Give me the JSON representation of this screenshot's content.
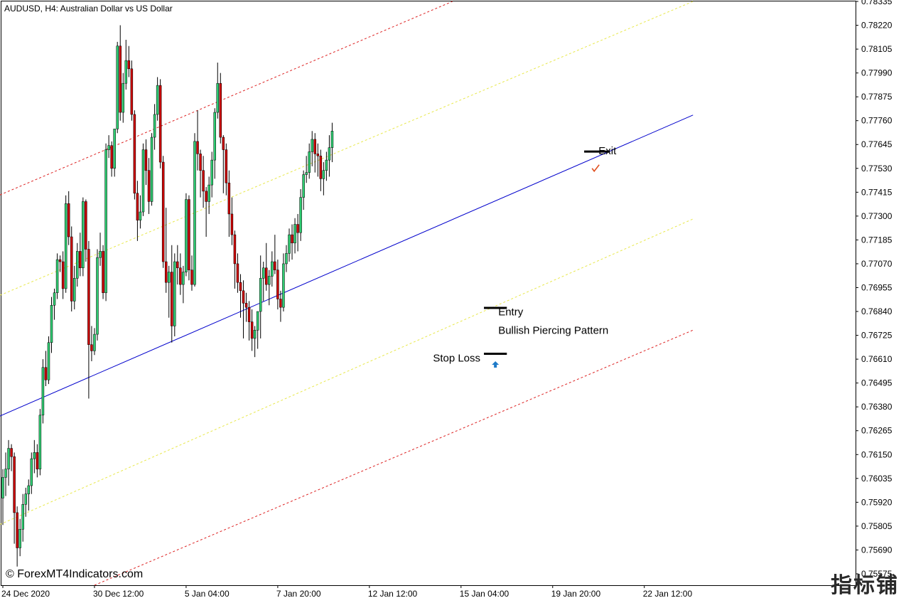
{
  "chart_data": {
    "type": "candlestick",
    "title": "AUDUSD, H4:  Australian Dollar vs US Dollar",
    "watermark": "© ForexMT4Indicators.com",
    "corner_logo": "指标铺",
    "y_ticks": [
      "0.78335",
      "0.78220",
      "0.78105",
      "0.77990",
      "0.77875",
      "0.77760",
      "0.77645",
      "0.77530",
      "0.77415",
      "0.77300",
      "0.77185",
      "0.77070",
      "0.76955",
      "0.76840",
      "0.76725",
      "0.76610",
      "0.76495",
      "0.76380",
      "0.76265",
      "0.76150",
      "0.76035",
      "0.75920",
      "0.75805",
      "0.75690",
      "0.75575"
    ],
    "ylim": [
      0.7552,
      0.78335
    ],
    "x_ticks": [
      {
        "label": "24 Dec 2020",
        "bar": 0
      },
      {
        "label": "30 Dec 12:00",
        "bar": 32
      },
      {
        "label": "5 Jan 04:00",
        "bar": 64
      },
      {
        "label": "7 Jan 20:00",
        "bar": 96
      },
      {
        "label": "12 Jan 12:00",
        "bar": 128
      },
      {
        "label": "15 Jan 04:00",
        "bar": 160
      },
      {
        "label": "19 Jan 20:00",
        "bar": 192
      },
      {
        "label": "22 Jan 12:00",
        "bar": 224
      }
    ],
    "candles_ohlc": [
      [
        0.7594,
        0.7608,
        0.7581,
        0.7604
      ],
      [
        0.7604,
        0.7616,
        0.7595,
        0.7608
      ],
      [
        0.7608,
        0.7622,
        0.76,
        0.7618
      ],
      [
        0.7618,
        0.762,
        0.7607,
        0.7614
      ],
      [
        0.7614,
        0.7616,
        0.7572,
        0.7587
      ],
      [
        0.7587,
        0.759,
        0.7561,
        0.757
      ],
      [
        0.757,
        0.7584,
        0.7566,
        0.7579
      ],
      [
        0.7579,
        0.7596,
        0.7573,
        0.7591
      ],
      [
        0.7591,
        0.7599,
        0.7585,
        0.7596
      ],
      [
        0.7596,
        0.7603,
        0.7588,
        0.76
      ],
      [
        0.76,
        0.7616,
        0.7596,
        0.7613
      ],
      [
        0.7613,
        0.7622,
        0.7606,
        0.7616
      ],
      [
        0.7616,
        0.762,
        0.7604,
        0.7608
      ],
      [
        0.7608,
        0.7637,
        0.7605,
        0.7634
      ],
      [
        0.7634,
        0.7661,
        0.763,
        0.7657
      ],
      [
        0.7657,
        0.7665,
        0.7648,
        0.7651
      ],
      [
        0.7651,
        0.7672,
        0.7649,
        0.7669
      ],
      [
        0.7669,
        0.7691,
        0.7664,
        0.7687
      ],
      [
        0.7687,
        0.7695,
        0.768,
        0.7693
      ],
      [
        0.7693,
        0.7712,
        0.769,
        0.7709
      ],
      [
        0.7709,
        0.7711,
        0.7703,
        0.7708
      ],
      [
        0.7708,
        0.7713,
        0.769,
        0.7695
      ],
      [
        0.7695,
        0.774,
        0.7693,
        0.7736
      ],
      [
        0.7736,
        0.7742,
        0.7716,
        0.772
      ],
      [
        0.772,
        0.7725,
        0.7684,
        0.7689
      ],
      [
        0.7689,
        0.7706,
        0.7685,
        0.77
      ],
      [
        0.77,
        0.7717,
        0.7696,
        0.7713
      ],
      [
        0.7713,
        0.7722,
        0.7701,
        0.7705
      ],
      [
        0.7705,
        0.7739,
        0.7701,
        0.7737
      ],
      [
        0.7737,
        0.7738,
        0.7708,
        0.7714
      ],
      [
        0.7714,
        0.7718,
        0.7642,
        0.7668
      ],
      [
        0.7668,
        0.7677,
        0.766,
        0.7665
      ],
      [
        0.7665,
        0.7676,
        0.7663,
        0.7673
      ],
      [
        0.7673,
        0.7714,
        0.767,
        0.771
      ],
      [
        0.771,
        0.7722,
        0.7706,
        0.7713
      ],
      [
        0.7713,
        0.7716,
        0.769,
        0.7693
      ],
      [
        0.7693,
        0.7765,
        0.7689,
        0.7762
      ],
      [
        0.7762,
        0.7769,
        0.7758,
        0.7764
      ],
      [
        0.7764,
        0.7766,
        0.7749,
        0.7753
      ],
      [
        0.7753,
        0.7772,
        0.7749,
        0.7772
      ],
      [
        0.7772,
        0.7814,
        0.777,
        0.7812
      ],
      [
        0.7812,
        0.7822,
        0.7776,
        0.778
      ],
      [
        0.778,
        0.7799,
        0.7775,
        0.7794
      ],
      [
        0.7794,
        0.7815,
        0.7791,
        0.7805
      ],
      [
        0.7805,
        0.7812,
        0.7797,
        0.7801
      ],
      [
        0.7801,
        0.7805,
        0.7776,
        0.7779
      ],
      [
        0.7779,
        0.7781,
        0.7738,
        0.7741
      ],
      [
        0.7741,
        0.7747,
        0.7718,
        0.7728
      ],
      [
        0.7728,
        0.774,
        0.7724,
        0.7732
      ],
      [
        0.7732,
        0.7765,
        0.773,
        0.7762
      ],
      [
        0.7762,
        0.7767,
        0.7745,
        0.7752
      ],
      [
        0.7752,
        0.7758,
        0.7731,
        0.7737
      ],
      [
        0.7737,
        0.777,
        0.7735,
        0.7768
      ],
      [
        0.7768,
        0.7784,
        0.7762,
        0.7779
      ],
      [
        0.7779,
        0.7797,
        0.7776,
        0.7793
      ],
      [
        0.7793,
        0.7796,
        0.7753,
        0.7756
      ],
      [
        0.7756,
        0.7759,
        0.7705,
        0.7708
      ],
      [
        0.7708,
        0.7734,
        0.7693,
        0.7698
      ],
      [
        0.7698,
        0.7706,
        0.7681,
        0.7703
      ],
      [
        0.7703,
        0.7716,
        0.7669,
        0.7677
      ],
      [
        0.7677,
        0.7712,
        0.7672,
        0.7708
      ],
      [
        0.7708,
        0.7716,
        0.7697,
        0.7705
      ],
      [
        0.7705,
        0.7712,
        0.7692,
        0.7697
      ],
      [
        0.7697,
        0.7706,
        0.7688,
        0.7703
      ],
      [
        0.7703,
        0.7741,
        0.7701,
        0.7738
      ],
      [
        0.7738,
        0.774,
        0.7699,
        0.7704
      ],
      [
        0.7704,
        0.7711,
        0.7694,
        0.7697
      ],
      [
        0.7697,
        0.777,
        0.7696,
        0.7766
      ],
      [
        0.7766,
        0.7781,
        0.7752,
        0.776
      ],
      [
        0.776,
        0.7762,
        0.7739,
        0.7752
      ],
      [
        0.7752,
        0.7759,
        0.7734,
        0.7742
      ],
      [
        0.7742,
        0.7744,
        0.772,
        0.7737
      ],
      [
        0.7737,
        0.7749,
        0.7731,
        0.7745
      ],
      [
        0.7745,
        0.7761,
        0.7739,
        0.7757
      ],
      [
        0.7757,
        0.7782,
        0.7748,
        0.778
      ],
      [
        0.778,
        0.7804,
        0.7777,
        0.7794
      ],
      [
        0.7794,
        0.7799,
        0.7765,
        0.7768
      ],
      [
        0.7768,
        0.7769,
        0.7741,
        0.7762
      ],
      [
        0.7762,
        0.7765,
        0.774,
        0.7746
      ],
      [
        0.7746,
        0.7752,
        0.772,
        0.7731
      ],
      [
        0.7731,
        0.7739,
        0.7716,
        0.7721
      ],
      [
        0.7721,
        0.7723,
        0.7695,
        0.7707
      ],
      [
        0.7707,
        0.7712,
        0.7693,
        0.7698
      ],
      [
        0.7698,
        0.7702,
        0.7681,
        0.7694
      ],
      [
        0.7694,
        0.7699,
        0.7671,
        0.7688
      ],
      [
        0.7688,
        0.7693,
        0.7679,
        0.7686
      ],
      [
        0.7686,
        0.7689,
        0.767,
        0.7679
      ],
      [
        0.7679,
        0.7685,
        0.7665,
        0.7671
      ],
      [
        0.7671,
        0.7677,
        0.7662,
        0.7675
      ],
      [
        0.7675,
        0.7684,
        0.7666,
        0.7684
      ],
      [
        0.7684,
        0.7711,
        0.7671,
        0.77
      ],
      [
        0.77,
        0.7708,
        0.7689,
        0.7705
      ],
      [
        0.7705,
        0.7717,
        0.7694,
        0.7697
      ],
      [
        0.7697,
        0.7704,
        0.7687,
        0.7701
      ],
      [
        0.7701,
        0.7713,
        0.7696,
        0.7708
      ],
      [
        0.7708,
        0.7721,
        0.7702,
        0.7704
      ],
      [
        0.7704,
        0.7709,
        0.7685,
        0.769
      ],
      [
        0.769,
        0.7694,
        0.7679,
        0.7686
      ],
      [
        0.7686,
        0.7712,
        0.7684,
        0.7707
      ],
      [
        0.7707,
        0.7716,
        0.7703,
        0.7712
      ],
      [
        0.7712,
        0.7724,
        0.7708,
        0.7721
      ],
      [
        0.7721,
        0.7726,
        0.7709,
        0.7717
      ],
      [
        0.7717,
        0.7729,
        0.7712,
        0.7726
      ],
      [
        0.7726,
        0.7731,
        0.7713,
        0.7722
      ],
      [
        0.7722,
        0.7743,
        0.7718,
        0.7739
      ],
      [
        0.7739,
        0.7752,
        0.7733,
        0.775
      ],
      [
        0.775,
        0.7759,
        0.7746,
        0.7751
      ],
      [
        0.7751,
        0.7765,
        0.7748,
        0.7761
      ],
      [
        0.7761,
        0.7771,
        0.7754,
        0.7767
      ],
      [
        0.7767,
        0.777,
        0.7751,
        0.776
      ],
      [
        0.776,
        0.7765,
        0.7749,
        0.7759
      ],
      [
        0.7759,
        0.7762,
        0.7742,
        0.7748
      ],
      [
        0.7748,
        0.7756,
        0.774,
        0.7752
      ],
      [
        0.7752,
        0.7761,
        0.7747,
        0.7757
      ],
      [
        0.7757,
        0.7769,
        0.7749,
        0.7763
      ],
      [
        0.7763,
        0.7775,
        0.7756,
        0.7771
      ]
    ],
    "channel_lines": {
      "middle": {
        "color": "#0000cc",
        "style": "solid",
        "from": [
          -1,
          0.76336
        ],
        "to": [
          241,
          0.77787
        ]
      },
      "upper_red": {
        "color": "#dd2222",
        "style": "dotted",
        "from": [
          -1,
          0.77402
        ],
        "to": [
          157,
          0.78335
        ]
      },
      "upper_yellow": {
        "color": "#e8e84a",
        "style": "dotted",
        "from": [
          -1,
          0.76918
        ],
        "to": [
          241,
          0.78335
        ]
      },
      "lower_yellow": {
        "color": "#e8e84a",
        "style": "dotted",
        "from": [
          -1,
          0.75813
        ],
        "to": [
          241,
          0.77286
        ]
      },
      "lower_red": {
        "color": "#dd2222",
        "style": "dotted",
        "from": [
          32,
          0.7552
        ],
        "to": [
          241,
          0.7675
        ]
      }
    },
    "annotations": [
      {
        "text": "Entry",
        "bar": 173,
        "price": 0.76839
      },
      {
        "text": "Bullish Piercing Pattern",
        "bar": 173,
        "price": 0.7675
      },
      {
        "text": "Stop Loss",
        "bar": 168,
        "price": 0.76616
      },
      {
        "text": "Exit",
        "bar": 208,
        "price": 0.77615
      }
    ],
    "levels": [
      {
        "name": "entry-level",
        "bar_from": 168,
        "bar_to": 176,
        "price": 0.76857
      },
      {
        "name": "stop-loss-level",
        "bar_from": 168,
        "bar_to": 176,
        "price": 0.76636
      },
      {
        "name": "exit-level",
        "bar_from": 203,
        "bar_to": 212,
        "price": 0.77611
      }
    ],
    "arrow_buy": {
      "bar": 172,
      "price": 0.766
    },
    "check_mark": {
      "bar": 207,
      "price": 0.7753
    },
    "colors": {
      "bull": "#2ecc71",
      "bear": "#cc0000",
      "wick": "#000000",
      "axis": "#000000",
      "text": "#000000",
      "arrow": "#1e7ac8",
      "check": "#e05020"
    }
  }
}
